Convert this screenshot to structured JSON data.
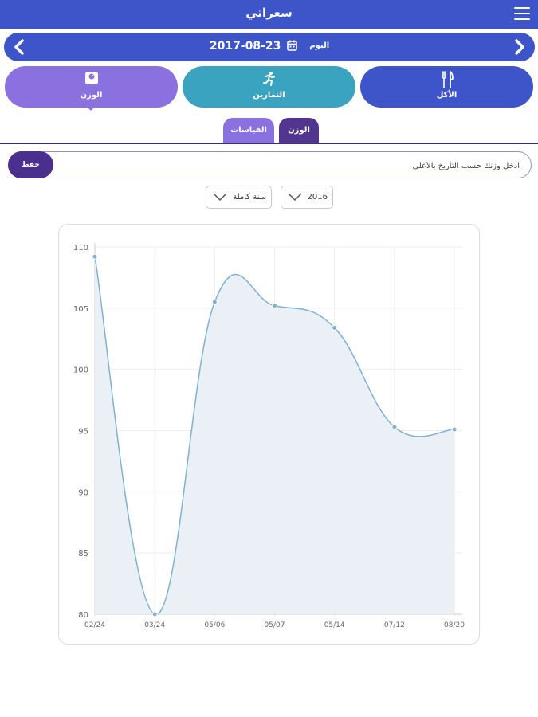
{
  "appbar": {
    "title": "سعراتي",
    "menu_icon": "hamburger-menu-icon"
  },
  "datebar": {
    "date": "2017-08-23",
    "today_label": "اليوم",
    "calendar_icon": "calendar-icon",
    "prev_icon": "chevron-left-icon",
    "next_icon": "chevron-right-icon"
  },
  "categories": [
    {
      "label": "الوزن",
      "icon": "scale-icon",
      "color": "#8b70df",
      "selected": true
    },
    {
      "label": "التمارين",
      "icon": "running-icon",
      "color": "#3aa3c0",
      "selected": false
    },
    {
      "label": "الأكل",
      "icon": "fork-knife-icon",
      "color": "#3d55c9",
      "selected": false
    }
  ],
  "subtabs": {
    "measurements": "القياسات",
    "weight": "الوزن"
  },
  "weight_form": {
    "placeholder": "ادخل وزنك حسب التاريخ بالأعلى",
    "save_label": "حفظ"
  },
  "filters": {
    "range": "سنة كاملة",
    "year": "2016"
  },
  "colors": {
    "primary": "#3d55c9",
    "purple": "#8b70df",
    "dark_purple": "#51358f",
    "teal": "#3aa3c0",
    "line": "#7fb1d1",
    "area": "#eaf0f6"
  },
  "chart_data": {
    "type": "area",
    "categories": [
      "02/24",
      "03/24",
      "05/06",
      "05/07",
      "05/14",
      "07/12",
      "08/20"
    ],
    "values": [
      109.2,
      80,
      105.5,
      105.2,
      103.4,
      95.3,
      95.1
    ],
    "y_ticks": [
      80,
      85,
      90,
      95,
      100,
      105,
      110
    ],
    "ylim": [
      80,
      110
    ],
    "grid": true
  }
}
